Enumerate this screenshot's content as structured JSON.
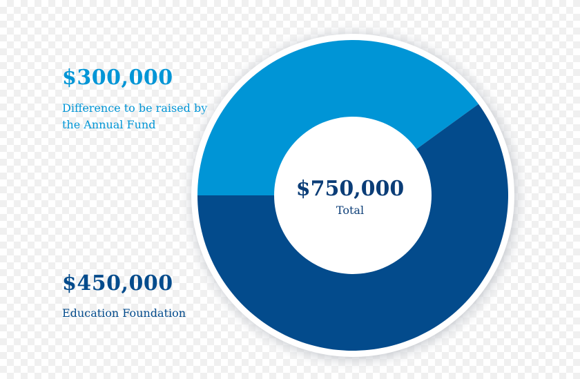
{
  "colors": {
    "annual_fund": "#0095d6",
    "education_foundation": "#034b8c",
    "annual_label": "#0095d6",
    "foundation_label": "#034b8c",
    "center_text": "#0b3d77",
    "ring_shadow": "#c9ccd2"
  },
  "labels": {
    "annual_amount": "$300,000",
    "annual_desc": "Difference to be raised by the Annual Fund",
    "foundation_amount": "$450,000",
    "foundation_desc": "Education Foundation"
  },
  "center": {
    "total": "$750,000",
    "caption": "Total"
  },
  "chart_data": {
    "type": "pie",
    "categories": [
      "Difference to be raised by the Annual Fund",
      "Education Foundation"
    ],
    "values": [
      300000,
      450000
    ],
    "total": 750000
  }
}
